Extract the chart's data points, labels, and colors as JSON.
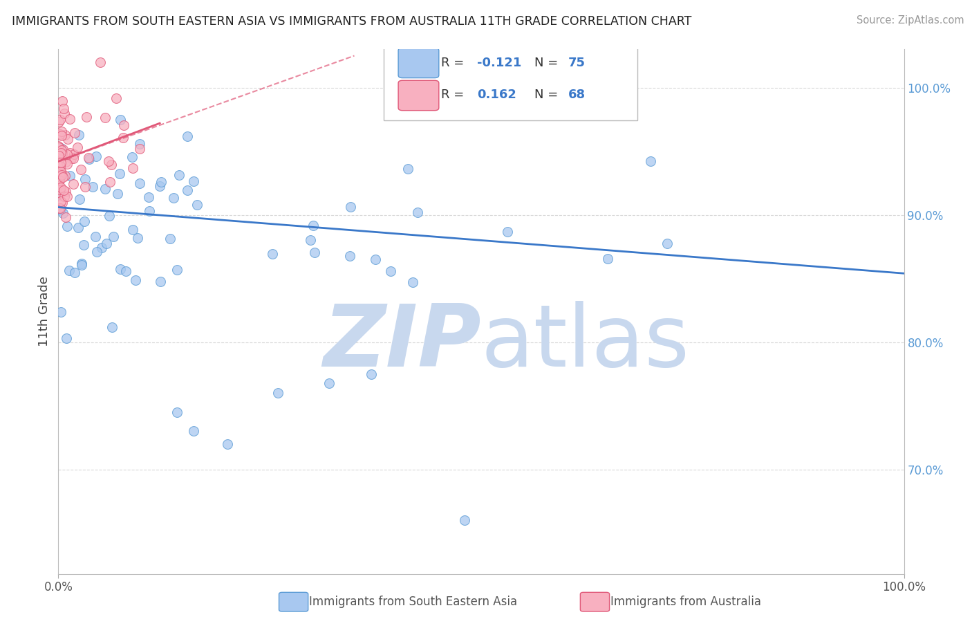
{
  "title": "IMMIGRANTS FROM SOUTH EASTERN ASIA VS IMMIGRANTS FROM AUSTRALIA 11TH GRADE CORRELATION CHART",
  "source": "Source: ZipAtlas.com",
  "ylabel": "11th Grade",
  "blue_color": "#A8C8F0",
  "blue_edge_color": "#5B9BD5",
  "pink_color": "#F8B0C0",
  "pink_edge_color": "#E05878",
  "trend_blue_color": "#3A78C9",
  "trend_pink_color": "#E05878",
  "watermark_color": "#C8D8EE",
  "grid_color": "#C8C8C8",
  "xlim": [
    0.0,
    1.0
  ],
  "ylim": [
    0.618,
    1.03
  ],
  "ytick_positions": [
    0.7,
    0.8,
    0.9,
    1.0
  ],
  "ytick_labels": [
    "70.0%",
    "80.0%",
    "90.0%",
    "100.0%"
  ],
  "right_tick_color": "#5B9BD5",
  "blue_trend_x0": 0.0,
  "blue_trend_y0": 0.906,
  "blue_trend_x1": 1.0,
  "blue_trend_y1": 0.854,
  "pink_trend_solid_x0": 0.0,
  "pink_trend_solid_y0": 0.942,
  "pink_trend_solid_x1": 0.12,
  "pink_trend_solid_y1": 0.972,
  "pink_trend_dash_x0": 0.0,
  "pink_trend_dash_y0": 0.942,
  "pink_trend_dash_x1": 0.35,
  "pink_trend_dash_y1": 1.025,
  "legend_r1": "R = -0.121",
  "legend_n1": "N = 75",
  "legend_r2": "R =  0.162",
  "legend_n2": "N = 68",
  "bottom_label1": "Immigrants from South Eastern Asia",
  "bottom_label2": "Immigrants from Australia",
  "marker_size": 100
}
